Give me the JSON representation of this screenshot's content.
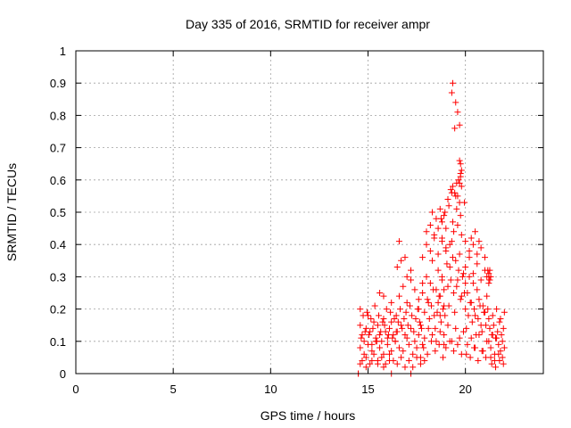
{
  "chart_data": {
    "type": "scatter",
    "title": "Day 335 of 2016, SRMTID for receiver ampr",
    "xlabel": "GPS time / hours",
    "ylabel": "SRMTID / TECUs",
    "xlim": [
      0,
      24
    ],
    "ylim": [
      0,
      1
    ],
    "xticks": [
      "0",
      "5",
      "10",
      "15",
      "20"
    ],
    "xtick_values": [
      0,
      5,
      10,
      15,
      20
    ],
    "yticks": [
      "0",
      "0.1",
      "0.2",
      "0.3",
      "0.4",
      "0.5",
      "0.6",
      "0.7",
      "0.8",
      "0.9",
      "1"
    ],
    "ytick_values": [
      0,
      0.1,
      0.2,
      0.3,
      0.4,
      0.5,
      0.6,
      0.7,
      0.8,
      0.9,
      1.0
    ],
    "grid": true,
    "marker": "plus",
    "marker_color": "#ff0000",
    "series": [
      {
        "x": [
          14.6,
          14.7,
          14.8,
          14.9,
          15.0,
          15.1,
          15.2,
          15.3,
          15.4,
          15.5,
          15.6,
          15.7,
          15.8,
          15.9,
          16.0,
          16.1,
          16.2,
          16.3,
          14.6,
          14.8,
          15.0,
          15.2,
          15.4,
          15.6,
          15.8,
          16.0,
          16.2,
          16.4,
          14.7,
          14.9,
          15.1,
          15.3,
          15.5,
          15.7,
          15.9,
          16.1,
          16.3,
          14.6,
          14.75,
          14.95,
          15.15,
          15.35,
          15.55,
          15.75,
          15.95,
          16.15,
          16.35,
          14.65,
          14.85,
          15.05,
          15.25,
          15.45,
          15.65,
          15.85,
          16.05,
          16.25,
          16.45,
          14.6,
          14.9,
          15.2,
          15.5,
          15.8,
          16.1,
          15.6,
          15.8,
          16.2,
          16.6,
          16.9,
          16.4,
          16.5,
          16.6,
          16.7,
          16.8,
          16.9,
          17.0,
          17.1,
          17.2,
          17.3,
          17.4,
          17.5,
          17.6,
          17.7,
          17.8,
          16.45,
          16.55,
          16.65,
          16.75,
          16.85,
          16.95,
          17.05,
          17.15,
          17.25,
          17.35,
          17.45,
          17.55,
          17.65,
          17.75,
          16.5,
          16.7,
          16.9,
          17.1,
          17.3,
          17.5,
          17.7,
          17.9,
          16.6,
          16.8,
          17.0,
          17.2,
          17.4,
          17.6,
          17.8,
          16.5,
          16.7,
          17.0,
          17.2,
          17.6,
          17.8,
          18.0,
          18.1,
          18.2,
          18.3,
          18.4,
          18.5,
          18.6,
          18.7,
          18.8,
          18.9,
          17.7,
          17.9,
          18.05,
          18.15,
          18.25,
          18.35,
          18.45,
          18.55,
          18.65,
          18.75,
          18.85,
          18.95,
          17.8,
          18.0,
          18.2,
          18.4,
          18.6,
          18.8,
          19.0,
          17.9,
          18.1,
          18.3,
          18.5,
          18.7,
          18.9,
          18.0,
          18.2,
          18.4,
          18.6,
          18.8,
          17.85,
          18.05,
          18.25,
          18.45,
          18.65,
          18.85,
          18.3,
          18.5,
          18.7,
          18.9,
          18.6,
          18.8,
          19.0,
          19.1,
          19.2,
          19.3,
          19.4,
          19.5,
          19.6,
          19.7,
          19.8,
          19.9,
          20.0,
          18.7,
          18.9,
          19.05,
          19.15,
          19.25,
          19.35,
          19.45,
          19.55,
          19.65,
          19.75,
          19.85,
          19.95,
          18.8,
          19.0,
          19.2,
          19.4,
          19.6,
          19.8,
          20.0,
          18.9,
          19.1,
          19.3,
          19.5,
          19.7,
          19.9,
          19.0,
          19.2,
          19.4,
          19.6,
          19.8,
          18.75,
          18.95,
          19.15,
          19.35,
          19.55,
          19.75,
          19.95,
          19.1,
          19.3,
          19.5,
          19.7,
          19.25,
          19.35,
          19.45,
          19.55,
          19.65,
          19.75,
          19.3,
          19.35,
          19.45,
          19.5,
          19.6,
          19.7,
          19.75,
          19.8,
          19.6,
          19.7,
          19.75,
          19.7,
          19.8,
          20.0,
          20.1,
          20.2,
          20.3,
          20.4,
          20.5,
          20.6,
          20.7,
          20.8,
          20.9,
          21.0,
          21.1,
          21.2,
          20.05,
          20.15,
          20.25,
          20.35,
          20.45,
          20.55,
          20.65,
          20.75,
          20.85,
          20.95,
          21.05,
          21.15,
          20.0,
          20.2,
          20.4,
          20.6,
          20.8,
          21.0,
          21.2,
          20.1,
          20.3,
          20.5,
          20.7,
          20.9,
          21.1,
          20.2,
          20.4,
          20.6,
          20.8,
          21.0,
          20.05,
          20.25,
          20.45,
          20.65,
          20.85,
          21.05,
          20.3,
          20.5,
          20.7,
          21.1,
          21.15,
          21.2,
          21.25,
          21.3,
          21.2,
          21.25,
          21.2,
          21.3,
          21.4,
          21.5,
          21.6,
          21.7,
          21.8,
          21.9,
          22.0,
          21.25,
          21.35,
          21.45,
          21.55,
          21.65,
          21.75,
          21.85,
          21.95,
          21.3,
          21.5,
          21.7,
          21.9,
          21.4,
          21.6,
          21.8,
          22.0,
          21.35,
          21.55,
          21.75,
          21.95,
          14.5,
          14.5,
          17.2,
          17.2,
          16.2
        ],
        "y": [
          0.15,
          0.12,
          0.1,
          0.14,
          0.18,
          0.13,
          0.09,
          0.16,
          0.11,
          0.15,
          0.12,
          0.1,
          0.17,
          0.13,
          0.11,
          0.14,
          0.16,
          0.12,
          0.08,
          0.06,
          0.09,
          0.07,
          0.1,
          0.08,
          0.06,
          0.09,
          0.07,
          0.1,
          0.04,
          0.05,
          0.03,
          0.06,
          0.04,
          0.05,
          0.03,
          0.06,
          0.04,
          0.2,
          0.18,
          0.19,
          0.17,
          0.21,
          0.18,
          0.16,
          0.2,
          0.19,
          0.17,
          0.11,
          0.13,
          0.12,
          0.14,
          0.1,
          0.13,
          0.15,
          0.12,
          0.11,
          0.13,
          0.03,
          0.02,
          0.04,
          0.03,
          0.02,
          0.04,
          0.25,
          0.24,
          0.22,
          0.41,
          0.36,
          0.1,
          0.13,
          0.08,
          0.15,
          0.07,
          0.12,
          0.11,
          0.09,
          0.14,
          0.06,
          0.1,
          0.08,
          0.12,
          0.05,
          0.09,
          0.18,
          0.16,
          0.2,
          0.14,
          0.17,
          0.19,
          0.15,
          0.21,
          0.18,
          0.13,
          0.17,
          0.2,
          0.16,
          0.14,
          0.03,
          0.05,
          0.02,
          0.04,
          0.02,
          0.05,
          0.03,
          0.04,
          0.24,
          0.27,
          0.22,
          0.29,
          0.26,
          0.23,
          0.28,
          0.33,
          0.35,
          0.3,
          0.32,
          0.2,
          0.25,
          0.3,
          0.22,
          0.28,
          0.35,
          0.18,
          0.26,
          0.32,
          0.24,
          0.29,
          0.21,
          0.15,
          0.19,
          0.23,
          0.17,
          0.21,
          0.26,
          0.14,
          0.19,
          0.24,
          0.16,
          0.2,
          0.18,
          0.36,
          0.4,
          0.38,
          0.42,
          0.37,
          0.41,
          0.39,
          0.11,
          0.14,
          0.12,
          0.1,
          0.13,
          0.09,
          0.44,
          0.46,
          0.43,
          0.45,
          0.47,
          0.08,
          0.06,
          0.1,
          0.07,
          0.09,
          0.05,
          0.5,
          0.48,
          0.51,
          0.49,
          0.22,
          0.3,
          0.38,
          0.27,
          0.33,
          0.41,
          0.25,
          0.35,
          0.29,
          0.37,
          0.24,
          0.31,
          0.28,
          0.18,
          0.26,
          0.34,
          0.21,
          0.29,
          0.36,
          0.19,
          0.27,
          0.32,
          0.23,
          0.3,
          0.25,
          0.42,
          0.45,
          0.4,
          0.44,
          0.46,
          0.43,
          0.41,
          0.12,
          0.15,
          0.1,
          0.14,
          0.11,
          0.13,
          0.08,
          0.1,
          0.07,
          0.09,
          0.06,
          0.48,
          0.5,
          0.52,
          0.47,
          0.51,
          0.49,
          0.53,
          0.54,
          0.56,
          0.55,
          0.53,
          0.57,
          0.58,
          0.56,
          0.59,
          0.6,
          0.62,
          0.87,
          0.9,
          0.76,
          0.84,
          0.81,
          0.77,
          0.65,
          0.63,
          0.55,
          0.59,
          0.61,
          0.66,
          0.58,
          0.2,
          0.25,
          0.3,
          0.22,
          0.28,
          0.18,
          0.26,
          0.23,
          0.15,
          0.21,
          0.19,
          0.24,
          0.17,
          0.14,
          0.18,
          0.22,
          0.16,
          0.2,
          0.12,
          0.17,
          0.21,
          0.13,
          0.19,
          0.15,
          0.2,
          0.33,
          0.36,
          0.31,
          0.34,
          0.29,
          0.32,
          0.3,
          0.09,
          0.11,
          0.08,
          0.12,
          0.07,
          0.1,
          0.38,
          0.4,
          0.37,
          0.39,
          0.36,
          0.06,
          0.05,
          0.08,
          0.04,
          0.07,
          0.05,
          0.42,
          0.44,
          0.41,
          0.3,
          0.32,
          0.31,
          0.29,
          0.3,
          0.28,
          0.32,
          0.1,
          0.08,
          0.12,
          0.06,
          0.11,
          0.09,
          0.07,
          0.1,
          0.08,
          0.14,
          0.12,
          0.15,
          0.11,
          0.13,
          0.16,
          0.12,
          0.14,
          0.05,
          0.04,
          0.06,
          0.05,
          0.18,
          0.2,
          0.17,
          0.19,
          0.03,
          0.02,
          0.04,
          0.03,
          0.0,
          0.0,
          0.0,
          0.0,
          0.0
        ]
      }
    ]
  }
}
